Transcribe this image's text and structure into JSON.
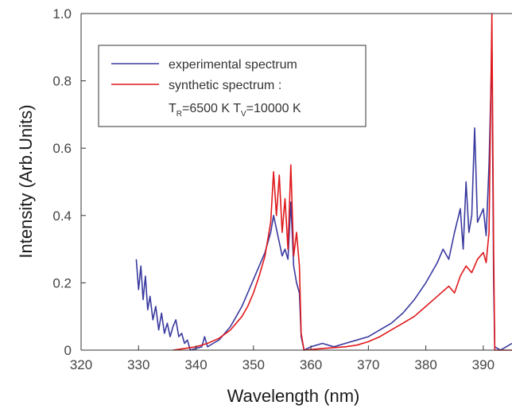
{
  "chart_data": {
    "type": "line",
    "xlabel": "Wavelength (nm)",
    "ylabel": "Intensity (Arb.Units)",
    "xlim": [
      320,
      395
    ],
    "ylim": [
      0,
      1.0
    ],
    "xticks": [
      320,
      330,
      340,
      350,
      360,
      370,
      380,
      390
    ],
    "yticks": [
      0,
      0.2,
      0.4,
      0.6,
      0.8,
      1.0
    ],
    "xtick_labels": [
      "320",
      "330",
      "340",
      "350",
      "360",
      "370",
      "380",
      "390"
    ],
    "ytick_labels": [
      "0",
      "0.2",
      "0.4",
      "0.6",
      "0.8",
      "1.0"
    ],
    "legend_position": "top-left",
    "legend": {
      "line1": "experimental spectrum",
      "line2": "synthetic spectrum :",
      "line3_a": "T",
      "line3_sub_a": "R",
      "line3_b": "=6500 K T",
      "line3_sub_b": "V",
      "line3_c": "=10000 K"
    },
    "series": [
      {
        "name": "experimental spectrum",
        "color": "#3a3aa0",
        "points": [
          [
            329.6,
            0.27
          ],
          [
            330.0,
            0.18
          ],
          [
            330.4,
            0.25
          ],
          [
            330.8,
            0.15
          ],
          [
            331.2,
            0.22
          ],
          [
            331.6,
            0.12
          ],
          [
            332.0,
            0.16
          ],
          [
            332.5,
            0.09
          ],
          [
            333.0,
            0.13
          ],
          [
            333.5,
            0.06
          ],
          [
            334.0,
            0.11
          ],
          [
            334.5,
            0.05
          ],
          [
            335.0,
            0.08
          ],
          [
            335.5,
            0.04
          ],
          [
            336.0,
            0.07
          ],
          [
            336.5,
            0.09
          ],
          [
            337.0,
            0.04
          ],
          [
            337.5,
            0.05
          ],
          [
            338.0,
            0.02
          ],
          [
            338.5,
            0.03
          ],
          [
            339.0,
            0.0
          ],
          [
            340.0,
            0.005
          ],
          [
            341.0,
            0.01
          ],
          [
            341.5,
            0.04
          ],
          [
            342.0,
            0.01
          ],
          [
            343.0,
            0.02
          ],
          [
            344.0,
            0.03
          ],
          [
            345.0,
            0.05
          ],
          [
            346.0,
            0.07
          ],
          [
            347.0,
            0.1
          ],
          [
            348.0,
            0.13
          ],
          [
            349.0,
            0.17
          ],
          [
            350.0,
            0.21
          ],
          [
            351.0,
            0.25
          ],
          [
            352.0,
            0.29
          ],
          [
            353.0,
            0.35
          ],
          [
            353.5,
            0.4
          ],
          [
            354.0,
            0.36
          ],
          [
            354.5,
            0.32
          ],
          [
            355.0,
            0.28
          ],
          [
            355.5,
            0.3
          ],
          [
            356.0,
            0.27
          ],
          [
            356.5,
            0.44
          ],
          [
            357.0,
            0.25
          ],
          [
            357.5,
            0.2
          ],
          [
            358.0,
            0.17
          ],
          [
            358.3,
            0.04
          ],
          [
            358.8,
            0.0
          ],
          [
            360.0,
            0.01
          ],
          [
            362.0,
            0.02
          ],
          [
            364.0,
            0.01
          ],
          [
            366.0,
            0.02
          ],
          [
            368.0,
            0.03
          ],
          [
            370.0,
            0.04
          ],
          [
            372.0,
            0.06
          ],
          [
            374.0,
            0.08
          ],
          [
            376.0,
            0.11
          ],
          [
            378.0,
            0.15
          ],
          [
            380.0,
            0.2
          ],
          [
            382.0,
            0.26
          ],
          [
            383.0,
            0.3
          ],
          [
            384.0,
            0.27
          ],
          [
            385.0,
            0.35
          ],
          [
            386.0,
            0.42
          ],
          [
            386.5,
            0.3
          ],
          [
            387.0,
            0.5
          ],
          [
            387.5,
            0.35
          ],
          [
            388.0,
            0.4
          ],
          [
            388.5,
            0.66
          ],
          [
            389.0,
            0.38
          ],
          [
            390.0,
            0.42
          ],
          [
            390.5,
            0.34
          ],
          [
            391.0,
            0.55
          ],
          [
            391.5,
            0.9
          ],
          [
            391.8,
            0.2
          ],
          [
            392.0,
            0.01
          ],
          [
            393.0,
            0.0
          ],
          [
            394.0,
            0.01
          ],
          [
            395.0,
            0.02
          ]
        ]
      },
      {
        "name": "synthetic spectrum",
        "color": "#e0191c",
        "points": [
          [
            336.0,
            0.0
          ],
          [
            338.0,
            0.005
          ],
          [
            340.0,
            0.01
          ],
          [
            342.0,
            0.02
          ],
          [
            344.0,
            0.035
          ],
          [
            346.0,
            0.06
          ],
          [
            347.0,
            0.08
          ],
          [
            348.0,
            0.1
          ],
          [
            349.0,
            0.13
          ],
          [
            350.0,
            0.17
          ],
          [
            351.0,
            0.22
          ],
          [
            352.0,
            0.28
          ],
          [
            352.5,
            0.33
          ],
          [
            353.0,
            0.38
          ],
          [
            353.5,
            0.53
          ],
          [
            354.0,
            0.4
          ],
          [
            354.5,
            0.52
          ],
          [
            355.0,
            0.35
          ],
          [
            355.5,
            0.45
          ],
          [
            356.0,
            0.3
          ],
          [
            356.5,
            0.55
          ],
          [
            357.0,
            0.28
          ],
          [
            357.5,
            0.35
          ],
          [
            358.0,
            0.25
          ],
          [
            358.3,
            0.05
          ],
          [
            358.8,
            0.0
          ],
          [
            362.0,
            0.005
          ],
          [
            366.0,
            0.01
          ],
          [
            368.0,
            0.015
          ],
          [
            370.0,
            0.025
          ],
          [
            372.0,
            0.04
          ],
          [
            374.0,
            0.06
          ],
          [
            376.0,
            0.08
          ],
          [
            378.0,
            0.1
          ],
          [
            380.0,
            0.13
          ],
          [
            382.0,
            0.16
          ],
          [
            384.0,
            0.19
          ],
          [
            385.0,
            0.17
          ],
          [
            386.0,
            0.22
          ],
          [
            387.0,
            0.25
          ],
          [
            388.0,
            0.23
          ],
          [
            389.0,
            0.27
          ],
          [
            390.0,
            0.29
          ],
          [
            390.5,
            0.26
          ],
          [
            391.0,
            0.35
          ],
          [
            391.5,
            1.0
          ],
          [
            391.8,
            0.3
          ],
          [
            392.0,
            0.0
          ],
          [
            395.0,
            0.0
          ]
        ]
      }
    ]
  }
}
